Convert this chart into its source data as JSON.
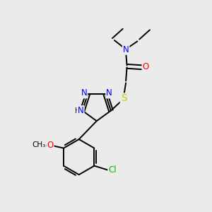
{
  "bg_color": "#ebebeb",
  "bond_color": "#000000",
  "atom_colors": {
    "N": "#0000ff",
    "O": "#ff0000",
    "S": "#cccc00",
    "Cl": "#00bb00",
    "C": "#000000",
    "H": "#000000"
  },
  "font_size": 8.5,
  "bond_width": 1.4,
  "figsize": [
    3.0,
    3.0
  ],
  "dpi": 100
}
